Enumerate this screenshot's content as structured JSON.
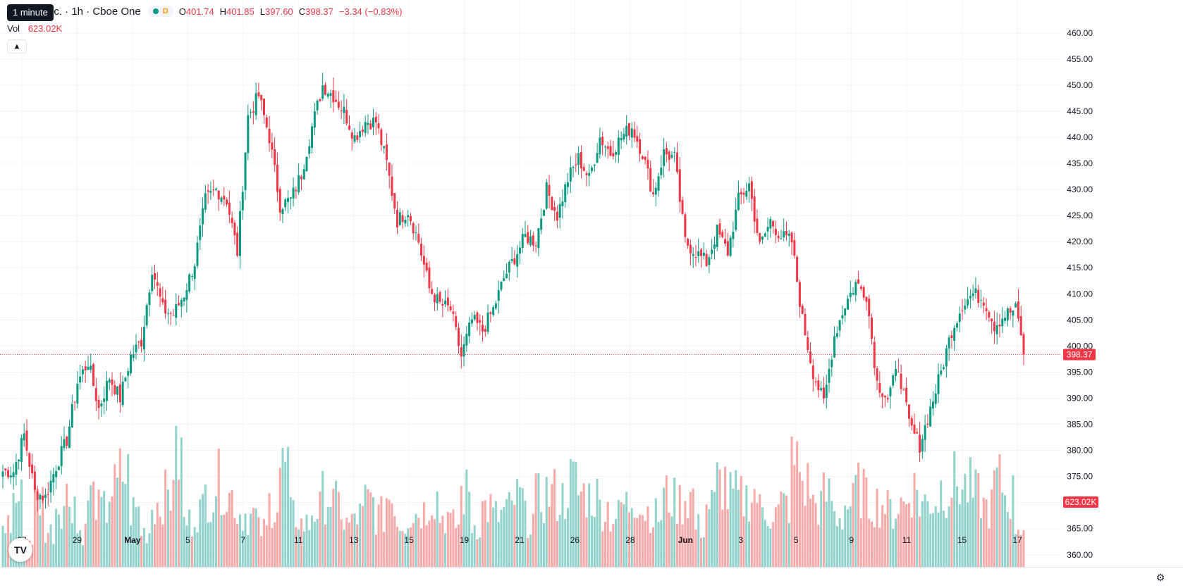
{
  "header": {
    "symbol_text": "nc. · 1h · Cboe One",
    "status_d": "D",
    "tooltip": "1 minute",
    "ohlc": [
      {
        "key": "O",
        "value": "401.74"
      },
      {
        "key": "H",
        "value": "401.85"
      },
      {
        "key": "L",
        "value": "397.60"
      },
      {
        "key": "C",
        "value": "398.37"
      }
    ],
    "change": "−3.34 (−0.83%)",
    "vol_label": "Vol",
    "vol_value": "623.02K",
    "collapse_icon": "chevron-up-icon"
  },
  "footer": {
    "logo_text": "TV",
    "settings_icon": "gear-icon"
  },
  "colors": {
    "up": "#089981",
    "down": "#f23645",
    "up_volume": "#92d2cc",
    "down_volume": "#f7a9a7",
    "grid": "#f0f3fa",
    "axis_text": "#131722"
  },
  "chart_data": {
    "type": "candlestick",
    "interval": "1h",
    "y_axis": {
      "position": "right",
      "range": [
        357,
        462
      ],
      "ticks": [
        460,
        455,
        450,
        445,
        440,
        435,
        430,
        425,
        420,
        415,
        410,
        405,
        400,
        395,
        390,
        385,
        380,
        375,
        370,
        365,
        360
      ]
    },
    "x_axis_labels": [
      "27",
      "29",
      "May",
      "5",
      "7",
      "11",
      "13",
      "15",
      "19",
      "21",
      "26",
      "28",
      "Jun",
      "3",
      "5",
      "9",
      "11",
      "15",
      "17"
    ],
    "last_price": "398.37",
    "last_volume": "623.02K",
    "grid": true,
    "keypoints": [
      376,
      376,
      383,
      372,
      371,
      377,
      382,
      393,
      397,
      388,
      394,
      390,
      398,
      401,
      415,
      407,
      406,
      410,
      416,
      428,
      430,
      428,
      418,
      444,
      448,
      440,
      427,
      428,
      433,
      442,
      450,
      448,
      445,
      440,
      443,
      443,
      435,
      424,
      426,
      420,
      411,
      408,
      407,
      398,
      405,
      403,
      407,
      413,
      417,
      421,
      420,
      430,
      425,
      432,
      436,
      432,
      440,
      437,
      440,
      442,
      437,
      429,
      437,
      436,
      420,
      418,
      416,
      422,
      418,
      428,
      431,
      419,
      424,
      421,
      420,
      405,
      395,
      389,
      402,
      408,
      412,
      410,
      393,
      390,
      396,
      385,
      381,
      388,
      395,
      403,
      408,
      410,
      409,
      404,
      406,
      407,
      398
    ],
    "volume_range": [
      0,
      100
    ],
    "volume_keypoints": [
      30,
      48,
      20,
      48,
      25,
      45,
      50,
      25,
      50,
      40,
      55,
      65,
      40,
      25,
      45,
      50,
      78,
      32,
      40,
      52,
      60,
      50,
      38,
      36,
      26,
      45,
      70,
      36,
      30,
      40,
      50,
      44,
      30,
      36,
      46,
      36,
      50,
      32,
      38,
      40,
      50,
      36,
      30,
      52,
      30,
      42,
      36,
      40,
      48,
      34,
      48,
      52,
      48,
      60,
      52,
      50,
      42,
      36,
      44,
      50,
      40,
      36,
      50,
      46,
      50,
      28,
      44,
      60,
      50,
      48,
      52,
      40,
      38,
      44,
      72,
      58,
      44,
      50,
      36,
      44,
      55,
      46,
      45,
      40,
      45,
      55,
      45,
      48,
      56,
      60,
      56,
      50,
      42,
      60,
      50,
      30,
      42
    ]
  }
}
